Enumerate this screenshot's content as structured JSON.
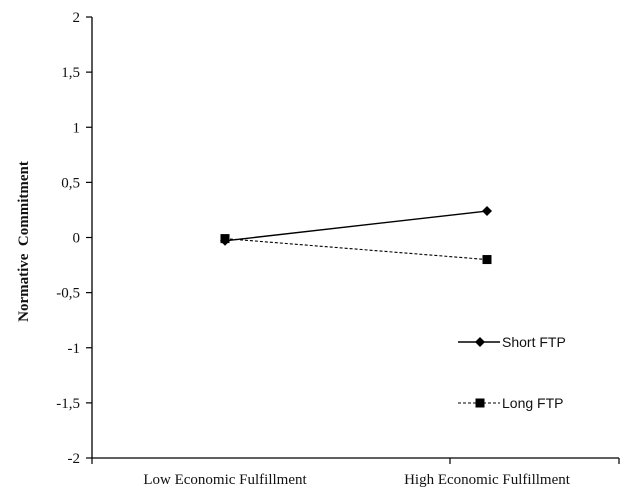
{
  "chart_data": {
    "type": "line",
    "title": "",
    "xlabel": "",
    "ylabel": "Normative  Commitment",
    "categories": [
      "Low Economic Fulfillment",
      "High Economic Fulfillment"
    ],
    "yticks": [
      "2",
      "1,5",
      "1",
      "0,5",
      "0",
      "-0,5",
      "-1",
      "-1,5",
      "-2"
    ],
    "ytick_values": [
      2,
      1.5,
      1,
      0.5,
      0,
      -0.5,
      -1,
      -1.5,
      -2
    ],
    "ylim": [
      -2,
      2
    ],
    "grid": false,
    "legend_position": "bottom-right",
    "series": [
      {
        "name": "Short FTP",
        "values": [
          -0.03,
          0.24
        ],
        "marker": "diamond",
        "line": "solid",
        "color": "#000000"
      },
      {
        "name": "Long FTP",
        "values": [
          -0.01,
          -0.2
        ],
        "marker": "square",
        "line": "dashed",
        "color": "#000000"
      }
    ]
  }
}
